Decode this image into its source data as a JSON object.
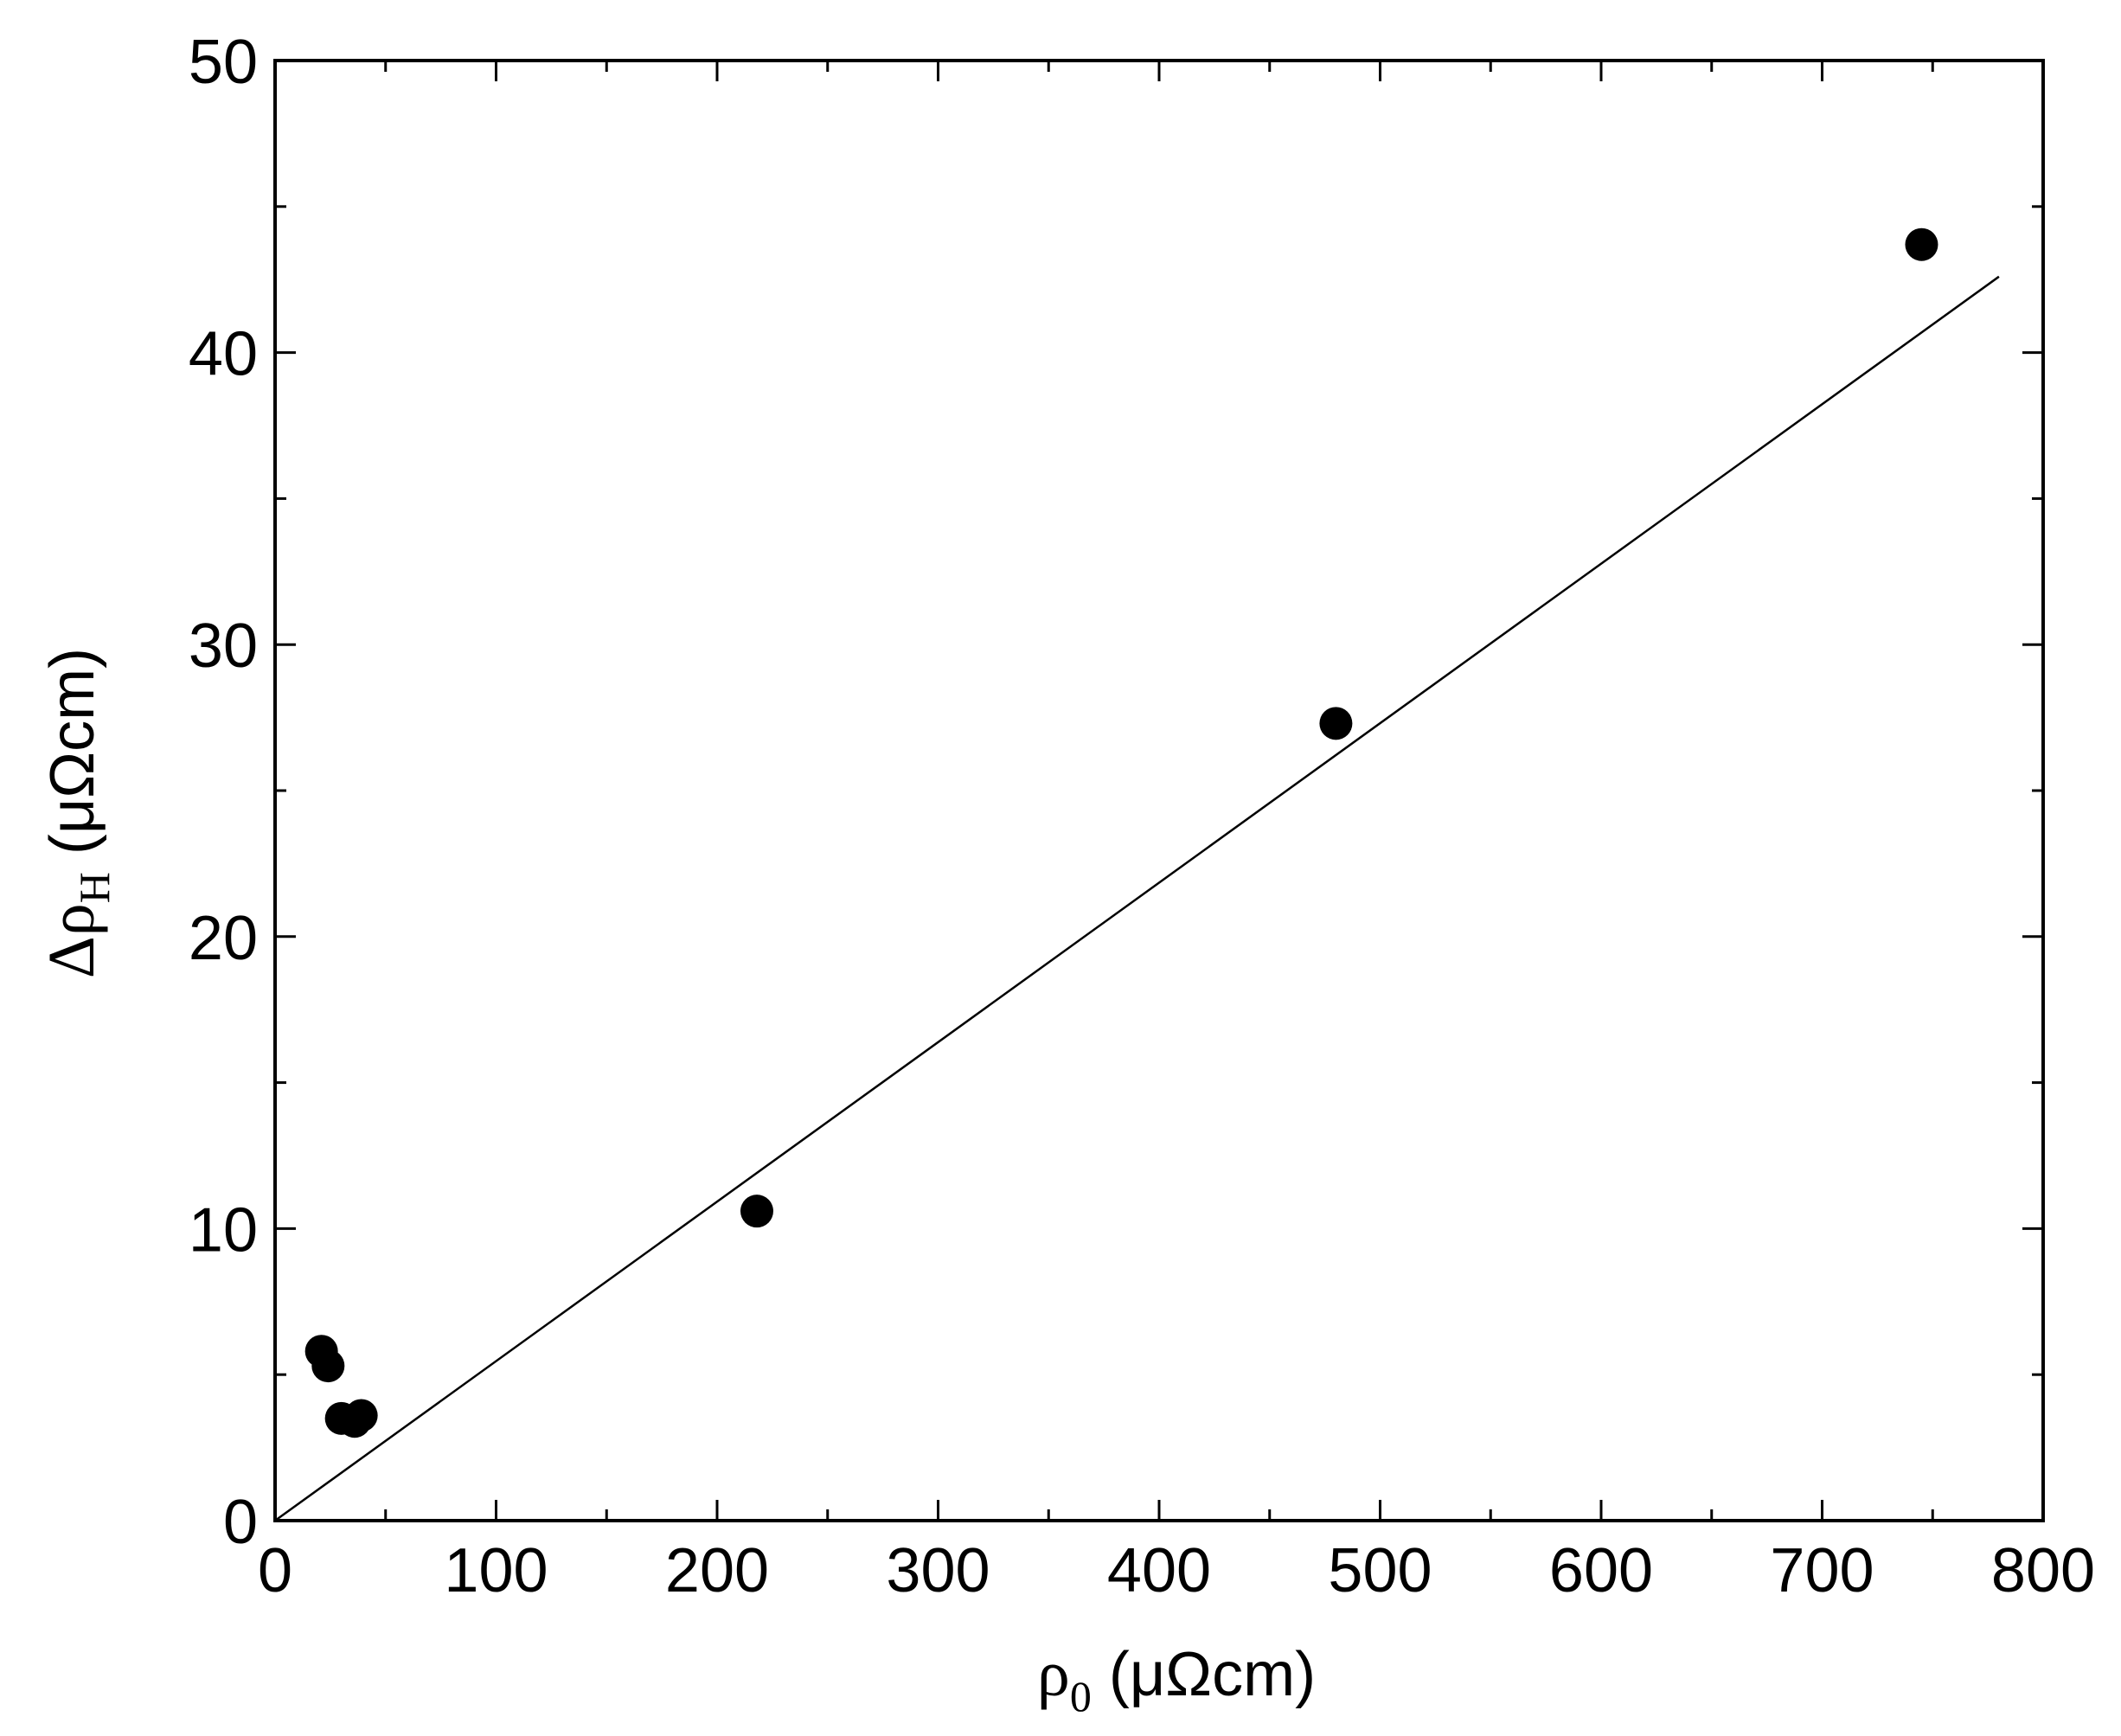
{
  "chart_data": {
    "type": "scatter",
    "x_label": {
      "symbol": "ρ",
      "subscript": "0",
      "unit": " (μΩcm)"
    },
    "y_label": {
      "symbol": "Δρ",
      "subscript": "H",
      "unit": " (μΩcm)"
    },
    "xlim": [
      0,
      800
    ],
    "ylim": [
      0,
      50
    ],
    "x_ticks": [
      0,
      100,
      200,
      300,
      400,
      500,
      600,
      700,
      800
    ],
    "y_ticks": [
      0,
      10,
      20,
      30,
      40,
      50
    ],
    "x_minor_step": 50,
    "y_minor_step": 5,
    "grid": false,
    "series": [
      {
        "type": "scatter",
        "marker": "filled-circle",
        "color": "#000000",
        "points": [
          {
            "x": 21,
            "y": 5.8
          },
          {
            "x": 24,
            "y": 5.3
          },
          {
            "x": 30,
            "y": 3.5
          },
          {
            "x": 36,
            "y": 3.4
          },
          {
            "x": 39,
            "y": 3.6
          },
          {
            "x": 218,
            "y": 10.6
          },
          {
            "x": 480,
            "y": 27.3
          },
          {
            "x": 745,
            "y": 43.7
          }
        ]
      },
      {
        "type": "line",
        "style": "linear-fit",
        "color": "#000000",
        "points": [
          {
            "x": 0,
            "y": 0
          },
          {
            "x": 780,
            "y": 42.6
          }
        ]
      }
    ]
  }
}
